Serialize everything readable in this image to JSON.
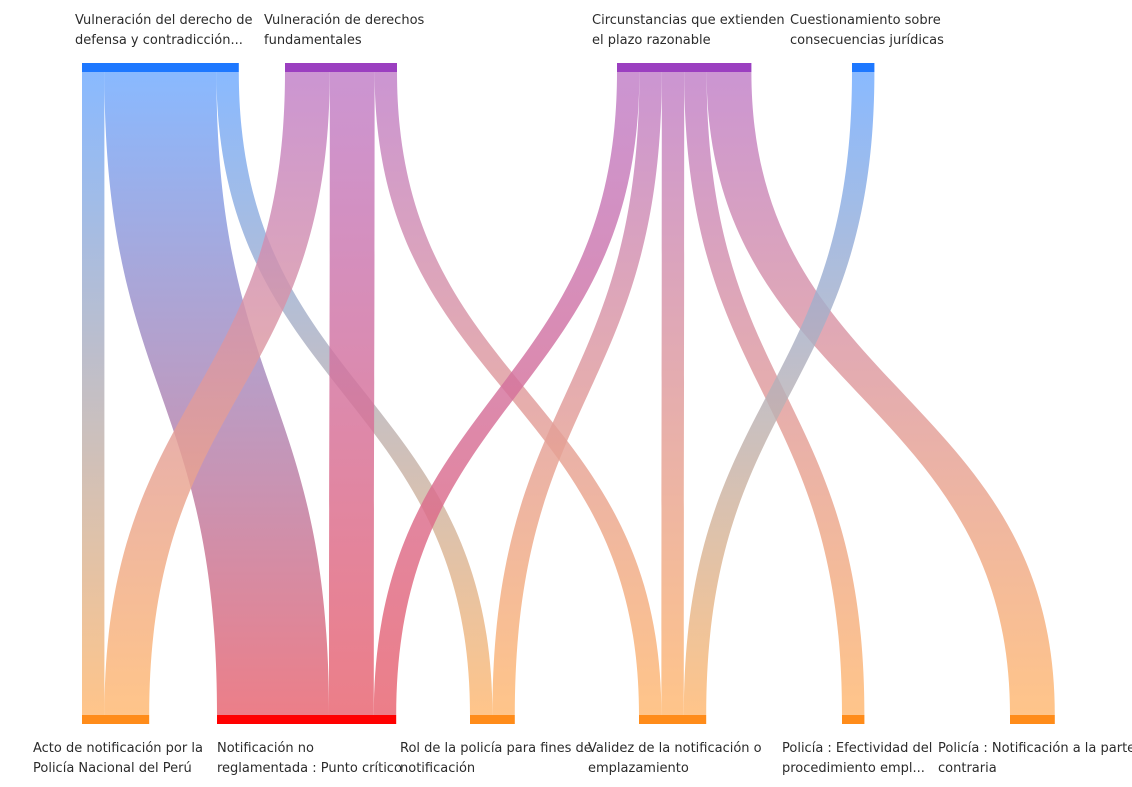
{
  "diagram": {
    "type": "sankey",
    "top_nodes": [
      {
        "id": "t1",
        "lines": [
          "Vulneración del derecho de",
          "defensa  y contradicción..."
        ],
        "color": "#1e78ff",
        "gradient_start": "#6faaff"
      },
      {
        "id": "t2",
        "lines": [
          "Vulneración de derechos",
          "fundamentales"
        ],
        "color": "#9b3fc0",
        "gradient_start": "#c07ec8"
      },
      {
        "id": "t3",
        "lines": [
          "Circunstancias que extienden",
          "el plazo razonable"
        ],
        "color": "#9b3fc0",
        "gradient_start": "#c07ec8"
      },
      {
        "id": "t4",
        "lines": [
          "Cuestionamiento sobre",
          "consecuencias jurídicas"
        ],
        "color": "#1e78ff",
        "gradient_start": "#6faaff"
      }
    ],
    "bottom_nodes": [
      {
        "id": "b1",
        "lines": [
          "Acto de notificación por la",
          "Policía Nacional del Perú"
        ],
        "color": "#ff8c1a",
        "gradient_end": "#ffb870"
      },
      {
        "id": "b2",
        "lines": [
          "Notificación no",
          "reglamentada : Punto crítico"
        ],
        "color": "#ff0000",
        "gradient_end": "#e8626e"
      },
      {
        "id": "b3",
        "lines": [
          "Rol de la policía para fines de",
          "notificación"
        ],
        "color": "#ff8c1a",
        "gradient_end": "#ffb870"
      },
      {
        "id": "b4",
        "lines": [
          "Validez de la notificación o",
          "emplazamiento"
        ],
        "color": "#ff8c1a",
        "gradient_end": "#ffb870"
      },
      {
        "id": "b5",
        "lines": [
          "Policía : Efectividad del",
          "procedimiento empl..."
        ],
        "color": "#ff8c1a",
        "gradient_end": "#ffb870"
      },
      {
        "id": "b6",
        "lines": [
          "Policía : Notificación a la parte",
          "contraria"
        ],
        "color": "#ff8c1a",
        "gradient_end": "#ffb870"
      }
    ],
    "links": [
      {
        "source": "t1",
        "target": "b1",
        "value": 1
      },
      {
        "source": "t1",
        "target": "b2",
        "value": 5
      },
      {
        "source": "t1",
        "target": "b3",
        "value": 1
      },
      {
        "source": "t2",
        "target": "b1",
        "value": 2
      },
      {
        "source": "t2",
        "target": "b2",
        "value": 2
      },
      {
        "source": "t2",
        "target": "b4",
        "value": 1
      },
      {
        "source": "t3",
        "target": "b2",
        "value": 1
      },
      {
        "source": "t3",
        "target": "b3",
        "value": 1
      },
      {
        "source": "t3",
        "target": "b4",
        "value": 1
      },
      {
        "source": "t3",
        "target": "b5",
        "value": 1
      },
      {
        "source": "t3",
        "target": "b6",
        "value": 2
      },
      {
        "source": "t4",
        "target": "b4",
        "value": 1
      }
    ]
  }
}
